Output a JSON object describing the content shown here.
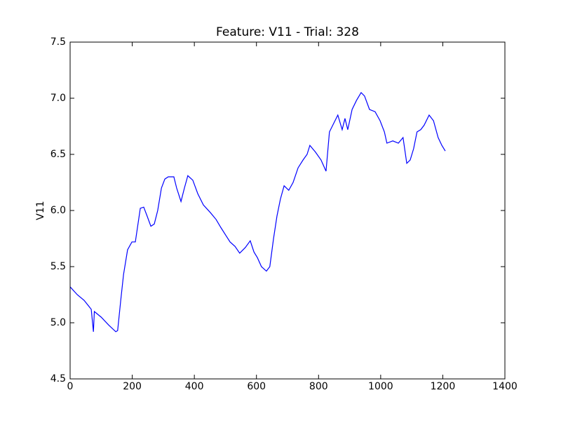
{
  "chart_data": {
    "type": "line",
    "title": "Feature: V11 - Trial: 328",
    "y_label": "V11",
    "x": [
      0,
      23,
      45,
      68,
      75,
      78,
      100,
      124,
      147,
      153,
      163,
      172,
      185,
      199,
      210,
      226,
      237,
      248,
      260,
      271,
      282,
      294,
      305,
      316,
      334,
      343,
      357,
      368,
      379,
      395,
      411,
      429,
      452,
      470,
      485,
      501,
      515,
      531,
      546,
      564,
      580,
      592,
      603,
      616,
      632,
      643,
      655,
      666,
      677,
      689,
      704,
      718,
      734,
      750,
      763,
      772,
      790,
      808,
      824,
      835,
      853,
      862,
      876,
      885,
      894,
      908,
      922,
      937,
      948,
      964,
      982,
      998,
      1012,
      1020,
      1039,
      1057,
      1072,
      1084,
      1095,
      1106,
      1117,
      1129,
      1140,
      1156,
      1170,
      1185,
      1197,
      1208
    ],
    "series": [
      {
        "name": "V11",
        "color": "#0000ff",
        "values": [
          5.32,
          5.25,
          5.2,
          5.12,
          4.92,
          5.1,
          5.05,
          4.98,
          4.92,
          4.93,
          5.2,
          5.43,
          5.65,
          5.72,
          5.72,
          6.02,
          6.03,
          5.95,
          5.86,
          5.88,
          6.0,
          6.2,
          6.28,
          6.3,
          6.3,
          6.2,
          6.08,
          6.2,
          6.31,
          6.27,
          6.15,
          6.05,
          5.98,
          5.92,
          5.85,
          5.78,
          5.72,
          5.68,
          5.62,
          5.67,
          5.73,
          5.63,
          5.58,
          5.5,
          5.46,
          5.5,
          5.75,
          5.95,
          6.1,
          6.22,
          6.18,
          6.25,
          6.38,
          6.45,
          6.5,
          6.58,
          6.52,
          6.45,
          6.35,
          6.7,
          6.8,
          6.85,
          6.72,
          6.82,
          6.72,
          6.9,
          6.98,
          7.05,
          7.02,
          6.9,
          6.88,
          6.8,
          6.7,
          6.6,
          6.62,
          6.6,
          6.65,
          6.42,
          6.45,
          6.55,
          6.7,
          6.72,
          6.76,
          6.85,
          6.8,
          6.65,
          6.58,
          6.53
        ]
      }
    ],
    "xlim": [
      0,
      1400
    ],
    "xticks": [
      0,
      200,
      400,
      600,
      800,
      1000,
      1200,
      1400
    ],
    "ylim": [
      4.5,
      7.5
    ],
    "yticks": [
      4.5,
      {
        "value": 5,
        "label": "5.0"
      },
      5.5,
      {
        "value": 6,
        "label": "6.0"
      },
      6.5,
      {
        "value": 7,
        "label": "7.0"
      },
      7.5
    ],
    "grid": false
  }
}
